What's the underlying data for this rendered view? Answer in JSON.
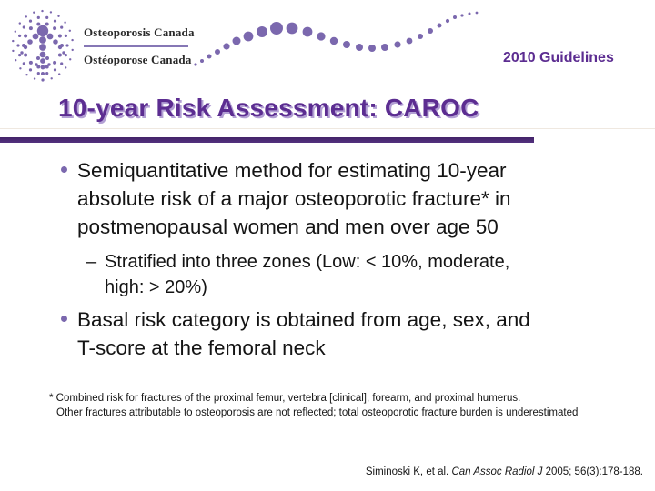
{
  "slide": {
    "header": {
      "org_name_en": "Osteoporosis Canada",
      "org_name_fr": "Ostéoporose Canada",
      "edition_label": "2010 Guidelines"
    },
    "title": "10-year Risk Assessment: CAROC",
    "bullet1": {
      "lines": [
        "Semiquantitative method for estimating 10-year",
        "absolute risk of a major osteoporotic fracture* in",
        "postmenopausal women and men over age 50"
      ]
    },
    "sub_bullet": {
      "dash": "–",
      "lines": [
        "Stratified into three zones (Low: < 10%, moderate,",
        "high: > 20%)"
      ]
    },
    "bullet2": {
      "lines": [
        "Basal risk category is obtained from age, sex, and",
        "T-score at the femoral neck"
      ]
    },
    "footnote": {
      "lines": [
        "* Combined risk for fractures of the proximal femur, vertebra [clinical], forearm, and proximal humerus.",
        "Other fractures attributable to osteoporosis are not reflected; total osteoporotic fracture burden is underestimated"
      ]
    },
    "citation": {
      "authors": "Siminoski K, et al. ",
      "journal": "Can Assoc Radiol J",
      "details": " 2005; 56(3):178-188."
    },
    "colors": {
      "accent_purple": "#5c2d91",
      "rule_purple": "#53317f",
      "logo_purple": "#7b68ae",
      "body_text": "#141414"
    }
  }
}
